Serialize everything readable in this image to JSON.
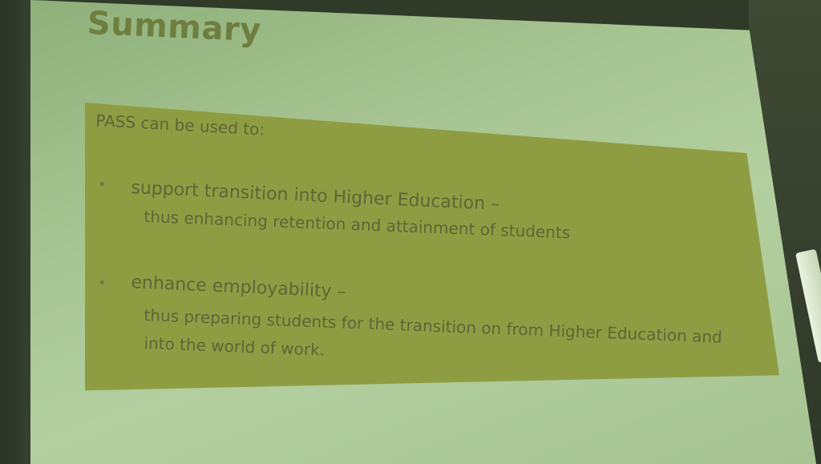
{
  "slide": {
    "title": "Summary",
    "intro": "PASS can be used to:",
    "bullets": [
      {
        "main": "support transition into Higher Education –",
        "sub": [
          "thus enhancing retention and attainment of students"
        ]
      },
      {
        "main": "enhance employability –",
        "sub": [
          "thus preparing students for the transition on from Higher Education and",
          "into the world of work."
        ]
      }
    ],
    "bullet_symbol": "•"
  },
  "colors": {
    "screen": "#a7c592",
    "panel": "#8f9d42",
    "title": "#6f7e3f",
    "panel_text": "#5b6638"
  }
}
